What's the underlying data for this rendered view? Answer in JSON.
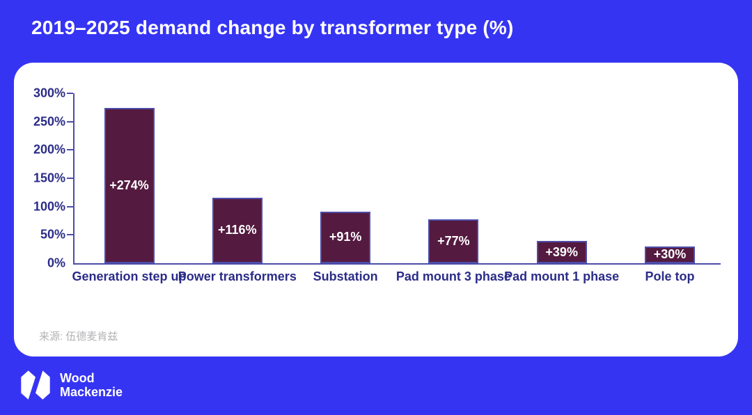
{
  "page": {
    "background_color": "#3634f3",
    "card_color": "#ffffff"
  },
  "header": {
    "title": "2019–2025 demand change by transformer type (%)"
  },
  "chart_data": {
    "type": "bar",
    "title": "2019–2025 demand change by transformer type (%)",
    "categories": [
      "Generation step up",
      "Power transformers",
      "Substation",
      "Pad mount 3 phase",
      "Pad mount 1 phase",
      "Pole top"
    ],
    "values": [
      274,
      116,
      91,
      77,
      39,
      30
    ],
    "bar_labels": [
      "+274%",
      "+116%",
      "+91%",
      "+77%",
      "+39%",
      "+30%"
    ],
    "xlabel": "",
    "ylabel": "",
    "ylim": [
      0,
      300
    ],
    "ytick_step": 50,
    "ytick_labels": [
      "0%",
      "50%",
      "100%",
      "150%",
      "200%",
      "250%",
      "300%"
    ],
    "grid": false,
    "legend": false,
    "bar_color": "#541a40",
    "bar_border_color": "#4d4da8",
    "axis_color": "#4d4da8",
    "tick_label_color": "#2b2c88",
    "value_label_color": "#ffffff"
  },
  "footer_card": {
    "source": "来源: 伍德麦肯兹"
  },
  "brand": {
    "icon": "wood-mackenzie-monogram-icon",
    "line1": "Wood",
    "line2": "Mackenzie"
  }
}
